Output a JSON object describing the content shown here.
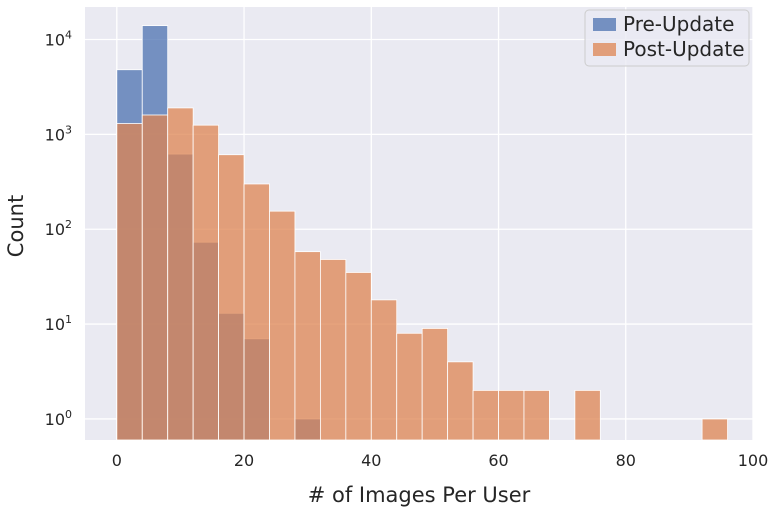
{
  "chart_data": {
    "type": "histogram",
    "xlabel": "# of Images Per User",
    "ylabel": "Count",
    "y_scale": "log",
    "xlim": [
      -5,
      100
    ],
    "ylim": [
      0.6,
      22000
    ],
    "grid": true,
    "legend_position": "top-right",
    "x_ticks": [
      0,
      20,
      40,
      60,
      80,
      100
    ],
    "y_ticks": [
      {
        "value": 1,
        "base": "10",
        "exp": "0"
      },
      {
        "value": 10,
        "base": "10",
        "exp": "1"
      },
      {
        "value": 100,
        "base": "10",
        "exp": "2"
      },
      {
        "value": 1000,
        "base": "10",
        "exp": "3"
      },
      {
        "value": 10000,
        "base": "10",
        "exp": "4"
      }
    ],
    "bin_edges": [
      0,
      4,
      8,
      12,
      16,
      20,
      24,
      28,
      32,
      36,
      40,
      44,
      48,
      52,
      56,
      60,
      64,
      68,
      72,
      76,
      80,
      84,
      88,
      92,
      96
    ],
    "series": [
      {
        "name": "Pre-Update",
        "color": "#4c72b0",
        "values": [
          4800,
          14000,
          620,
          73,
          13,
          7,
          0,
          1,
          0,
          0,
          0,
          0,
          0,
          0,
          0,
          0,
          0,
          0,
          0,
          0,
          0,
          0,
          0,
          0
        ]
      },
      {
        "name": "Post-Update",
        "color": "#dd8452",
        "values": [
          1300,
          1600,
          1900,
          1250,
          610,
          300,
          155,
          58,
          48,
          35,
          18,
          8,
          9,
          4,
          2,
          2,
          2,
          0,
          2,
          0,
          0,
          0,
          0,
          1
        ]
      }
    ],
    "overlap_color": "#6e7198"
  }
}
